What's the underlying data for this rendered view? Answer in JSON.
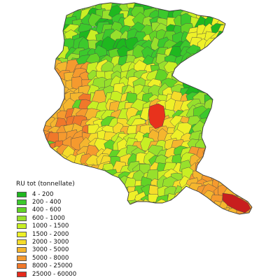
{
  "map": {
    "legend": {
      "title": "RU tot (tonnellate)",
      "classes": [
        {
          "label": "4 - 200",
          "color": "#1fb81f"
        },
        {
          "label": "200 - 400",
          "color": "#3cc92c"
        },
        {
          "label": "400 - 600",
          "color": "#62d426"
        },
        {
          "label": "600 - 1000",
          "color": "#97e02c"
        },
        {
          "label": "1000 - 1500",
          "color": "#c8ef24"
        },
        {
          "label": "1500 - 2000",
          "color": "#eef028"
        },
        {
          "label": "2000 - 3000",
          "color": "#f5dc2a"
        },
        {
          "label": "3000 - 5000",
          "color": "#f5b62e"
        },
        {
          "label": "5000 - 8000",
          "color": "#f59a2e"
        },
        {
          "label": "8000 - 25000",
          "color": "#f0782a"
        },
        {
          "label": "25000 - 60000",
          "color": "#e62a1c"
        }
      ]
    },
    "highlight_colors": {
      "trieste": "#c81e1e",
      "udine": "#e8321c"
    }
  }
}
